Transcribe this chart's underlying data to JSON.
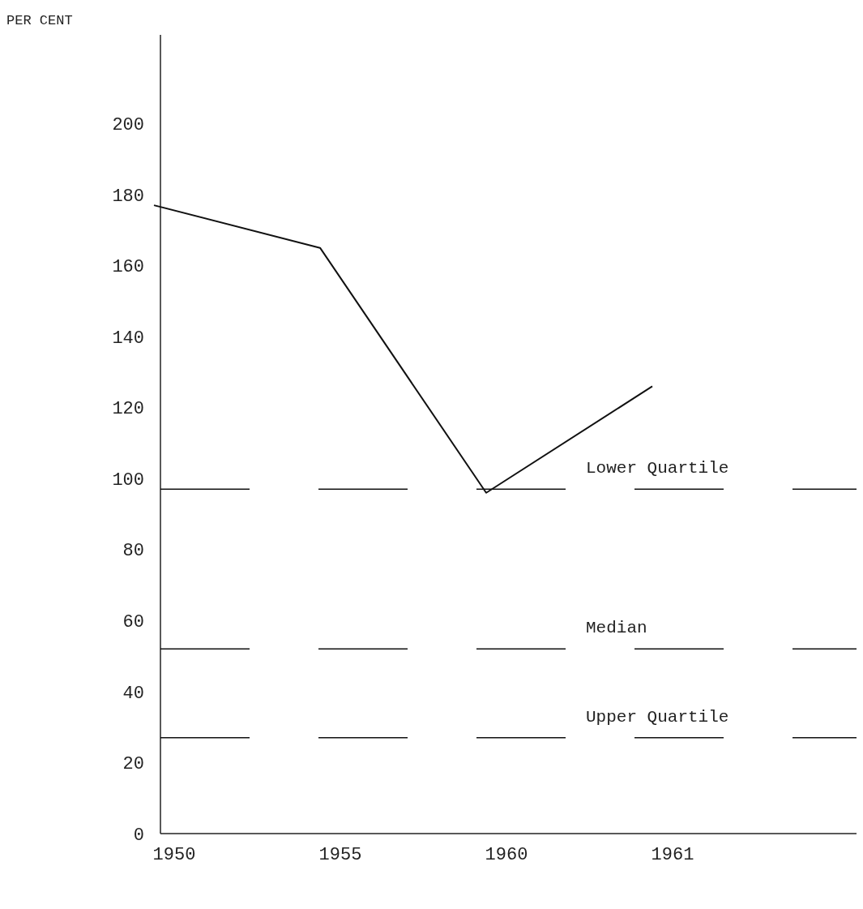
{
  "chart_data": {
    "type": "line",
    "ylabel": "PER CENT",
    "categories": [
      "1950",
      "1955",
      "1960",
      "1961"
    ],
    "values": [
      177,
      165,
      96,
      126
    ],
    "color": "#111111",
    "ylim": [
      0,
      225
    ],
    "yticks": [
      0,
      20,
      40,
      60,
      80,
      100,
      120,
      140,
      160,
      180,
      200
    ],
    "grid": false,
    "marker": "none",
    "line_style": "solid",
    "ref_lines": [
      {
        "axis": "y",
        "value": 97,
        "label": "Lower Quartile",
        "line_style": "dashed",
        "color": "#111111"
      },
      {
        "axis": "y",
        "value": 52,
        "label": "Median",
        "line_style": "dashed",
        "color": "#111111"
      },
      {
        "axis": "y",
        "value": 27,
        "label": "Upper Quartile",
        "line_style": "dashed",
        "color": "#111111"
      }
    ]
  }
}
